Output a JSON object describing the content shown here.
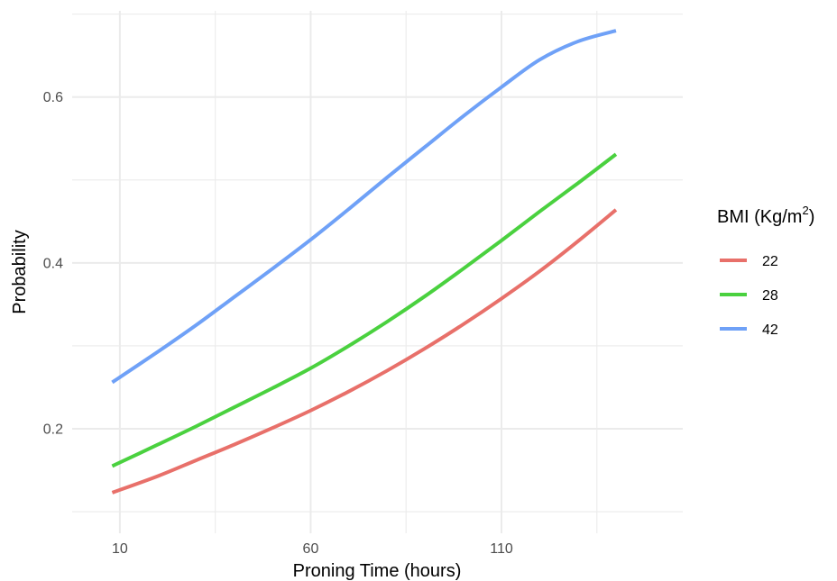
{
  "chart_data": {
    "type": "line",
    "title": "",
    "xlabel": "Proning Time (hours)",
    "ylabel": "Probability",
    "xlim": [
      -2.5,
      157.5
    ],
    "ylim": [
      0.074,
      0.704
    ],
    "x_ticks": [
      10,
      60,
      110
    ],
    "x_tick_labels": [
      "10",
      "60",
      "110"
    ],
    "x_minor_ticks": [
      35,
      85,
      135
    ],
    "y_ticks": [
      0.2,
      0.4,
      0.6
    ],
    "y_tick_labels": [
      "0.2",
      "0.4",
      "0.6"
    ],
    "y_minor_ticks": [
      0.1,
      0.3,
      0.5,
      0.7
    ],
    "grid": true,
    "legend": {
      "position": "right",
      "title_prefix": "BMI (Kg/m",
      "title_sup": "2",
      "title_suffix": ")"
    },
    "x": [
      8,
      20,
      30,
      40,
      50,
      60,
      70,
      80,
      90,
      100,
      110,
      120,
      130,
      140
    ],
    "series": [
      {
        "name": "22",
        "color": "#e8706a",
        "values": [
          0.123,
          0.143,
          0.162,
          0.181,
          0.201,
          0.222,
          0.245,
          0.27,
          0.297,
          0.326,
          0.357,
          0.39,
          0.426,
          0.464
        ]
      },
      {
        "name": "28",
        "color": "#4ad13f",
        "values": [
          0.155,
          0.181,
          0.203,
          0.226,
          0.249,
          0.273,
          0.3,
          0.329,
          0.36,
          0.393,
          0.427,
          0.462,
          0.496,
          0.531
        ]
      },
      {
        "name": "42",
        "color": "#6fa1f7",
        "values": [
          0.256,
          0.293,
          0.325,
          0.359,
          0.393,
          0.428,
          0.465,
          0.503,
          0.54,
          0.577,
          0.612,
          0.645,
          0.667,
          0.68
        ]
      }
    ]
  }
}
